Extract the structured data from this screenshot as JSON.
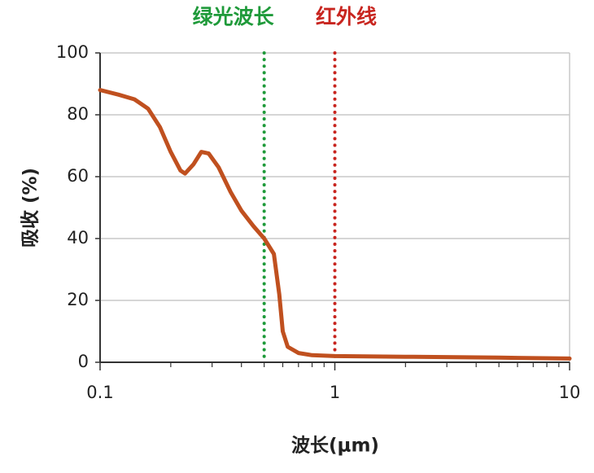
{
  "chart_data": {
    "type": "line",
    "x_label": "波长(μm)",
    "y_label": "吸收 (%)",
    "x": [
      0.1,
      0.12,
      0.14,
      0.16,
      0.18,
      0.2,
      0.22,
      0.23,
      0.25,
      0.27,
      0.29,
      0.32,
      0.36,
      0.4,
      0.45,
      0.5,
      0.55,
      0.58,
      0.6,
      0.63,
      0.7,
      0.8,
      1,
      2,
      5,
      10
    ],
    "values": [
      88,
      86.5,
      85,
      82,
      76,
      68,
      62,
      61,
      64,
      68,
      67.5,
      63,
      55,
      49,
      44,
      40,
      35,
      22,
      10,
      5,
      3,
      2.3,
      2,
      1.8,
      1.5,
      1.2
    ],
    "color": "#c0501f",
    "xlim": [
      0.1,
      10
    ],
    "xticks": [
      0.1,
      1,
      10
    ],
    "xscale": "log",
    "xminorticks": [
      0.2,
      0.3,
      0.4,
      0.5,
      0.6,
      0.7,
      0.8,
      0.9,
      2,
      3,
      4,
      5,
      6,
      7,
      8,
      9
    ],
    "ylim": [
      0,
      100
    ],
    "yticks": [
      0,
      20,
      40,
      60,
      80,
      100
    ],
    "grid": true,
    "reference_lines": [
      {
        "x": 0.5,
        "label": "绿光波长",
        "color": "#1f9a3a"
      },
      {
        "x": 1,
        "label": "红外线",
        "color": "#c8251f"
      }
    ]
  }
}
